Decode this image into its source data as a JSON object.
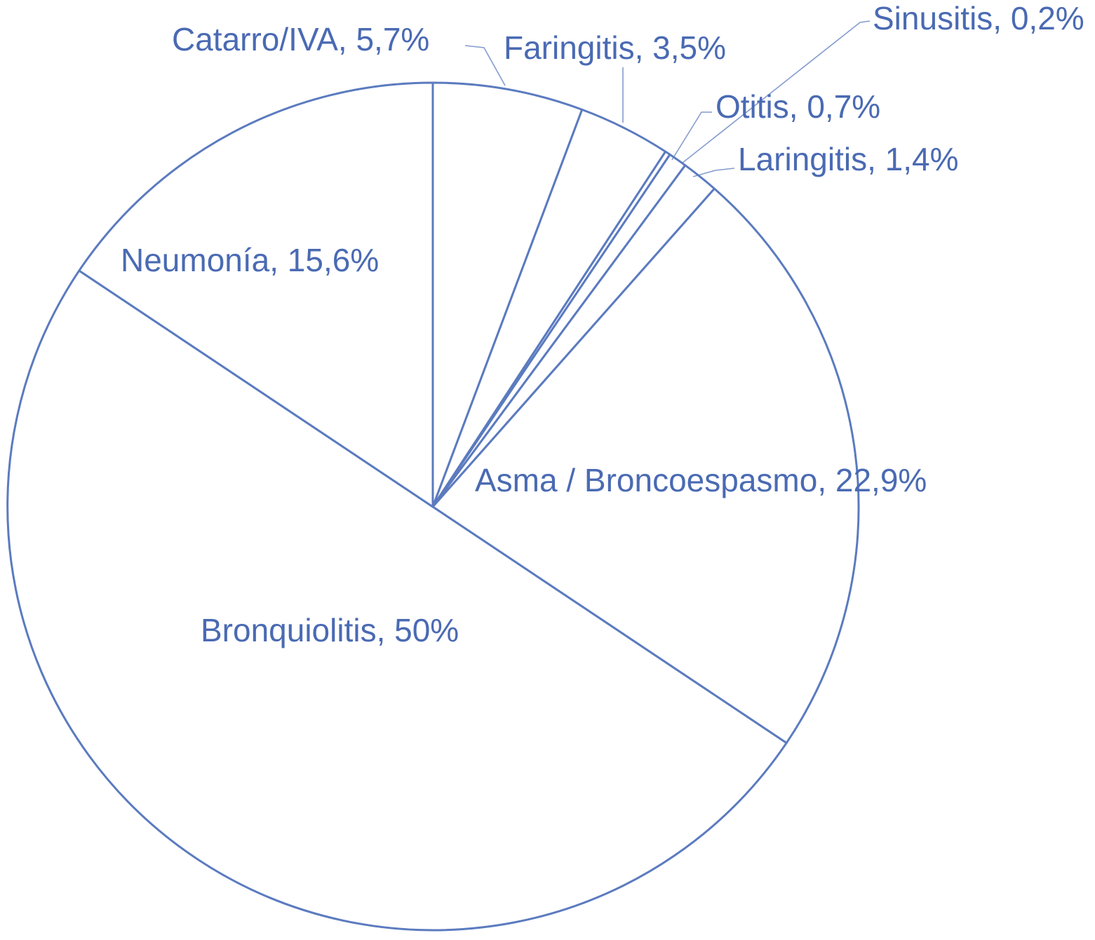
{
  "chart_data": {
    "type": "pie",
    "title": "",
    "start_angle_deg": 0,
    "direction": "clockwise",
    "style": {
      "stroke_color": "#5b7bbf",
      "label_color": "#4a6ab3",
      "fill_color": "#ffffff"
    },
    "slices": [
      {
        "name": "Catarro/IVA",
        "value": 5.7,
        "label": "Catarro/IVA, 5,7%"
      },
      {
        "name": "Faringitis",
        "value": 3.5,
        "label": "Faringitis, 3,5%"
      },
      {
        "name": "Sinusitis",
        "value": 0.2,
        "label": "Sinusitis, 0,2%"
      },
      {
        "name": "Otitis",
        "value": 0.7,
        "label": "Otitis, 0,7%"
      },
      {
        "name": "Laringitis",
        "value": 1.4,
        "label": "Laringitis, 1,4%"
      },
      {
        "name": "Asma / Broncoespasmo",
        "value": 22.9,
        "label": "Asma / Broncoespasmo, 22,9%"
      },
      {
        "name": "Bronquiolitis",
        "value": 50,
        "label": "Bronquiolitis, 50%"
      },
      {
        "name": "Neumonía",
        "value": 15.6,
        "label": "Neumonía, 15,6%"
      }
    ]
  }
}
